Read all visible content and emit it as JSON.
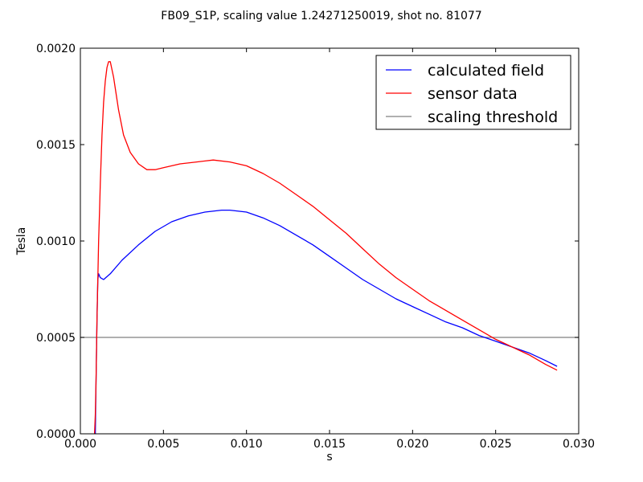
{
  "chart_data": {
    "type": "line",
    "title": "FB09_S1P, scaling value 1.24271250019, shot no. 81077",
    "xlabel": "s",
    "ylabel": "Tesla",
    "xlim": [
      0.0,
      0.03
    ],
    "ylim": [
      0.0,
      0.002
    ],
    "x_ticks": [
      "0.000",
      "0.005",
      "0.010",
      "0.015",
      "0.020",
      "0.025",
      "0.030"
    ],
    "y_ticks": [
      "0.0000",
      "0.0005",
      "0.0010",
      "0.0015",
      "0.0020"
    ],
    "grid": false,
    "legend_position": "top-right",
    "series": [
      {
        "name": "calculated field",
        "color": "#0000ff",
        "x": [
          0.0009,
          0.00095,
          0.001,
          0.00105,
          0.0011,
          0.0012,
          0.0014,
          0.0018,
          0.0025,
          0.0035,
          0.0045,
          0.0055,
          0.0065,
          0.0075,
          0.0085,
          0.009,
          0.01,
          0.011,
          0.012,
          0.013,
          0.014,
          0.015,
          0.016,
          0.017,
          0.018,
          0.019,
          0.02,
          0.021,
          0.022,
          0.023,
          0.024,
          0.025,
          0.026,
          0.027,
          0.028,
          0.0287
        ],
        "y": [
          0.0,
          0.0003,
          0.0006,
          0.0008,
          0.00083,
          0.00081,
          0.0008,
          0.00083,
          0.0009,
          0.00098,
          0.00105,
          0.0011,
          0.00113,
          0.00115,
          0.00116,
          0.00116,
          0.00115,
          0.00112,
          0.00108,
          0.00103,
          0.00098,
          0.00092,
          0.00086,
          0.0008,
          0.00075,
          0.0007,
          0.00066,
          0.00062,
          0.00058,
          0.00055,
          0.00051,
          0.00048,
          0.00045,
          0.00042,
          0.00038,
          0.00035
        ]
      },
      {
        "name": "sensor data",
        "color": "#ff0000",
        "x": [
          0.00085,
          0.0009,
          0.00095,
          0.001,
          0.00105,
          0.0011,
          0.00115,
          0.0012,
          0.0013,
          0.0014,
          0.0015,
          0.0016,
          0.0017,
          0.0018,
          0.002,
          0.0023,
          0.0026,
          0.003,
          0.0035,
          0.004,
          0.0045,
          0.005,
          0.006,
          0.007,
          0.008,
          0.009,
          0.01,
          0.011,
          0.012,
          0.013,
          0.014,
          0.015,
          0.016,
          0.017,
          0.018,
          0.019,
          0.02,
          0.021,
          0.022,
          0.023,
          0.024,
          0.025,
          0.026,
          0.027,
          0.028,
          0.0287
        ],
        "y": [
          0.0,
          0.0001,
          0.0003,
          0.0006,
          0.0008,
          0.001,
          0.00115,
          0.0013,
          0.00155,
          0.00172,
          0.00183,
          0.0019,
          0.00193,
          0.00193,
          0.00185,
          0.00168,
          0.00155,
          0.00146,
          0.0014,
          0.00137,
          0.00137,
          0.00138,
          0.0014,
          0.00141,
          0.00142,
          0.00141,
          0.00139,
          0.00135,
          0.0013,
          0.00124,
          0.00118,
          0.00111,
          0.00104,
          0.00096,
          0.00088,
          0.00081,
          0.00075,
          0.00069,
          0.00064,
          0.00059,
          0.00054,
          0.00049,
          0.00045,
          0.00041,
          0.00036,
          0.00033
        ]
      },
      {
        "name": "scaling threshold",
        "color": "#808080",
        "x": [
          0.0,
          0.03
        ],
        "y": [
          0.0005,
          0.0005
        ]
      }
    ]
  }
}
